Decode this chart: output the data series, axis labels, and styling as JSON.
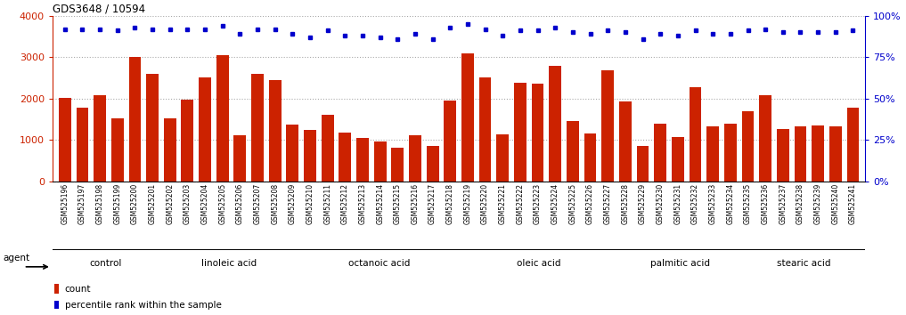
{
  "title": "GDS3648 / 10594",
  "categories": [
    "GSM525196",
    "GSM525197",
    "GSM525198",
    "GSM525199",
    "GSM525200",
    "GSM525201",
    "GSM525202",
    "GSM525203",
    "GSM525204",
    "GSM525205",
    "GSM525206",
    "GSM525207",
    "GSM525208",
    "GSM525209",
    "GSM525210",
    "GSM525211",
    "GSM525212",
    "GSM525213",
    "GSM525214",
    "GSM525215",
    "GSM525216",
    "GSM525217",
    "GSM525218",
    "GSM525219",
    "GSM525220",
    "GSM525221",
    "GSM525222",
    "GSM525223",
    "GSM525224",
    "GSM525225",
    "GSM525226",
    "GSM525227",
    "GSM525228",
    "GSM525229",
    "GSM525230",
    "GSM525231",
    "GSM525232",
    "GSM525233",
    "GSM525234",
    "GSM525235",
    "GSM525236",
    "GSM525237",
    "GSM525238",
    "GSM525239",
    "GSM525240",
    "GSM525241"
  ],
  "bar_values": [
    2020,
    1780,
    2080,
    1520,
    3000,
    2600,
    1520,
    1960,
    2500,
    3050,
    1100,
    2600,
    2450,
    1360,
    1240,
    1600,
    1180,
    1040,
    950,
    800,
    1100,
    850,
    1950,
    3100,
    2500,
    1130,
    2380,
    2350,
    2780,
    1450,
    1150,
    2680,
    1930,
    860,
    1380,
    1060,
    2280,
    1330,
    1380,
    1700,
    2070,
    1260,
    1330,
    1350,
    1330,
    1780
  ],
  "percentile_values": [
    92,
    92,
    92,
    91,
    93,
    92,
    92,
    92,
    92,
    94,
    89,
    92,
    92,
    89,
    87,
    91,
    88,
    88,
    87,
    86,
    89,
    86,
    93,
    95,
    92,
    88,
    91,
    91,
    93,
    90,
    89,
    91,
    90,
    86,
    89,
    88,
    91,
    89,
    89,
    91,
    92,
    90,
    90,
    90,
    90,
    91
  ],
  "bar_color": "#cc2200",
  "dot_color": "#0000cc",
  "ylim_left": [
    0,
    4000
  ],
  "ylim_right": [
    0,
    100
  ],
  "yticks_left": [
    0,
    1000,
    2000,
    3000,
    4000
  ],
  "yticks_right": [
    0,
    25,
    50,
    75,
    100
  ],
  "groups": [
    {
      "label": "control",
      "start": 0,
      "end": 6
    },
    {
      "label": "linoleic acid",
      "start": 6,
      "end": 14
    },
    {
      "label": "octanoic acid",
      "start": 14,
      "end": 23
    },
    {
      "label": "oleic acid",
      "start": 23,
      "end": 32
    },
    {
      "label": "palmitic acid",
      "start": 32,
      "end": 39
    },
    {
      "label": "stearic acid",
      "start": 39,
      "end": 46
    }
  ],
  "group_bg_color": "#88dd88",
  "agent_label": "agent",
  "legend_count_label": "count",
  "legend_pct_label": "percentile rank within the sample",
  "tick_color_left": "#cc2200",
  "tick_color_right": "#0000cc",
  "grid_color": "#aaaaaa",
  "bg_color": "#ffffff",
  "tick_box_color": "#cccccc",
  "divider_color": "#111111"
}
